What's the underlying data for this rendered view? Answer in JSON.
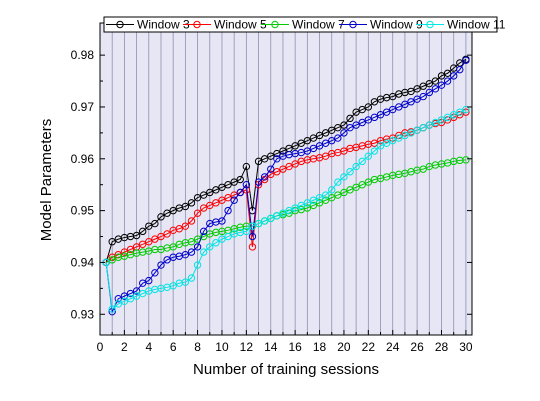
{
  "chart_data": {
    "type": "line",
    "xlabel": "Number of training sessions",
    "ylabel": "Model Parameters",
    "xlim": [
      0,
      30.5
    ],
    "ylim": [
      0.926,
      0.9862
    ],
    "xticks": [
      0,
      2,
      4,
      6,
      8,
      10,
      12,
      14,
      16,
      18,
      20,
      22,
      24,
      26,
      28,
      30
    ],
    "yticks": [
      0.93,
      0.94,
      0.95,
      0.96,
      0.97,
      0.98
    ],
    "xtick_labels": [
      "0",
      "2",
      "4",
      "6",
      "8",
      "10",
      "12",
      "14",
      "16",
      "18",
      "20",
      "22",
      "24",
      "26",
      "28",
      "30"
    ],
    "ytick_labels": [
      "0.93",
      "0.94",
      "0.95",
      "0.96",
      "0.97",
      "0.98"
    ],
    "grid": {
      "vertical": true,
      "horizontal": false
    },
    "background": "#e6e6f5",
    "legend_position": "top",
    "markers": "open-circle",
    "series": [
      {
        "name": "Window 3",
        "color": "#000000",
        "x": [
          0.5,
          1,
          1.5,
          2,
          2.5,
          3,
          3.5,
          4,
          4.5,
          5,
          5.5,
          6,
          6.5,
          7,
          7.5,
          8,
          8.5,
          9,
          9.5,
          10,
          10.5,
          11,
          11.5,
          12,
          12.5,
          13,
          13.5,
          14,
          14.5,
          15,
          15.5,
          16,
          16.5,
          17,
          17.5,
          18,
          18.5,
          19,
          19.5,
          20,
          20.5,
          21,
          21.5,
          22,
          22.5,
          23,
          23.5,
          24,
          24.5,
          25,
          25.5,
          26,
          26.5,
          27,
          27.5,
          28,
          28.5,
          29,
          29.5,
          30
        ],
        "y": [
          0.94,
          0.944,
          0.9445,
          0.9448,
          0.945,
          0.9452,
          0.946,
          0.947,
          0.9475,
          0.9488,
          0.9495,
          0.95,
          0.9505,
          0.9508,
          0.9515,
          0.9525,
          0.953,
          0.9535,
          0.954,
          0.9545,
          0.955,
          0.9555,
          0.956,
          0.9585,
          0.95,
          0.9595,
          0.96,
          0.9605,
          0.961,
          0.9615,
          0.962,
          0.9625,
          0.963,
          0.9635,
          0.964,
          0.9645,
          0.965,
          0.9655,
          0.966,
          0.9665,
          0.9678,
          0.969,
          0.9695,
          0.97,
          0.971,
          0.9715,
          0.9718,
          0.972,
          0.9725,
          0.9728,
          0.973,
          0.9735,
          0.974,
          0.9745,
          0.975,
          0.976,
          0.9765,
          0.9775,
          0.9785,
          0.9792
        ]
      },
      {
        "name": "Window 5",
        "color": "#ff0000",
        "x": [
          0.5,
          1,
          1.5,
          2,
          2.5,
          3,
          3.5,
          4,
          4.5,
          5,
          5.5,
          6,
          6.5,
          7,
          7.5,
          8,
          8.5,
          9,
          9.5,
          10,
          10.5,
          11,
          11.5,
          12,
          12.5,
          13,
          13.5,
          14,
          14.5,
          15,
          15.5,
          16,
          16.5,
          17,
          17.5,
          18,
          18.5,
          19,
          19.5,
          20,
          20.5,
          21,
          21.5,
          22,
          22.5,
          23,
          23.5,
          24,
          24.5,
          25,
          25.5,
          26,
          26.5,
          27,
          27.5,
          28,
          28.5,
          29,
          29.5,
          30
        ],
        "y": [
          0.94,
          0.941,
          0.9415,
          0.942,
          0.9425,
          0.943,
          0.9435,
          0.944,
          0.9445,
          0.945,
          0.9455,
          0.9462,
          0.9465,
          0.947,
          0.948,
          0.9495,
          0.9505,
          0.951,
          0.9515,
          0.952,
          0.9525,
          0.953,
          0.9535,
          0.954,
          0.943,
          0.955,
          0.956,
          0.957,
          0.9575,
          0.958,
          0.9585,
          0.959,
          0.9595,
          0.9598,
          0.96,
          0.9602,
          0.9605,
          0.961,
          0.9612,
          0.9615,
          0.962,
          0.9622,
          0.9625,
          0.9628,
          0.963,
          0.9635,
          0.9638,
          0.964,
          0.9645,
          0.965,
          0.9652,
          0.9655,
          0.966,
          0.9665,
          0.9668,
          0.967,
          0.9675,
          0.968,
          0.9685,
          0.969
        ]
      },
      {
        "name": "Window 7",
        "color": "#00cc00",
        "x": [
          0.5,
          1,
          1.5,
          2,
          2.5,
          3,
          3.5,
          4,
          4.5,
          5,
          5.5,
          6,
          6.5,
          7,
          7.5,
          8,
          8.5,
          9,
          9.5,
          10,
          10.5,
          11,
          11.5,
          12,
          12.5,
          13,
          13.5,
          14,
          14.5,
          15,
          15.5,
          16,
          16.5,
          17,
          17.5,
          18,
          18.5,
          19,
          19.5,
          20,
          20.5,
          21,
          21.5,
          22,
          22.5,
          23,
          23.5,
          24,
          24.5,
          25,
          25.5,
          26,
          26.5,
          27,
          27.5,
          28,
          28.5,
          29,
          29.5,
          30
        ],
        "y": [
          0.94,
          0.9405,
          0.941,
          0.9412,
          0.9415,
          0.9418,
          0.942,
          0.9422,
          0.9425,
          0.9425,
          0.9428,
          0.943,
          0.9435,
          0.9438,
          0.944,
          0.9445,
          0.945,
          0.9455,
          0.9458,
          0.946,
          0.9462,
          0.9465,
          0.9468,
          0.947,
          0.947,
          0.9475,
          0.948,
          0.9485,
          0.949,
          0.9492,
          0.9495,
          0.95,
          0.9502,
          0.9505,
          0.951,
          0.9515,
          0.952,
          0.9525,
          0.953,
          0.9535,
          0.954,
          0.9545,
          0.955,
          0.9555,
          0.956,
          0.9562,
          0.9565,
          0.9568,
          0.957,
          0.9572,
          0.9575,
          0.9578,
          0.958,
          0.9585,
          0.9588,
          0.959,
          0.9592,
          0.9595,
          0.9597,
          0.9598
        ]
      },
      {
        "name": "Window 9",
        "color": "#0000cc",
        "x": [
          0.5,
          1,
          1.5,
          2,
          2.5,
          3,
          3.5,
          4,
          4.5,
          5,
          5.5,
          6,
          6.5,
          7,
          7.5,
          8,
          8.5,
          9,
          9.5,
          10,
          10.5,
          11,
          11.5,
          12,
          12.5,
          13,
          13.5,
          14,
          14.5,
          15,
          15.5,
          16,
          16.5,
          17,
          17.5,
          18,
          18.5,
          19,
          19.5,
          20,
          20.5,
          21,
          21.5,
          22,
          22.5,
          23,
          23.5,
          24,
          24.5,
          25,
          25.5,
          26,
          26.5,
          27,
          27.5,
          28,
          28.5,
          29,
          29.5,
          30
        ],
        "y": [
          0.94,
          0.9305,
          0.933,
          0.9335,
          0.934,
          0.9345,
          0.936,
          0.9365,
          0.938,
          0.9395,
          0.9405,
          0.941,
          0.9412,
          0.9415,
          0.942,
          0.943,
          0.946,
          0.9475,
          0.9478,
          0.948,
          0.95,
          0.952,
          0.9535,
          0.955,
          0.945,
          0.9555,
          0.9565,
          0.958,
          0.96,
          0.9605,
          0.9608,
          0.961,
          0.9612,
          0.9615,
          0.962,
          0.9625,
          0.963,
          0.9635,
          0.964,
          0.965,
          0.966,
          0.9665,
          0.967,
          0.9675,
          0.968,
          0.9685,
          0.969,
          0.9695,
          0.97,
          0.9705,
          0.971,
          0.9715,
          0.972,
          0.9728,
          0.9735,
          0.9742,
          0.975,
          0.976,
          0.9772,
          0.979
        ]
      },
      {
        "name": "Window 11",
        "color": "#00e5e5",
        "x": [
          0.5,
          1,
          1.5,
          2,
          2.5,
          3,
          3.5,
          4,
          4.5,
          5,
          5.5,
          6,
          6.5,
          7,
          7.5,
          8,
          8.5,
          9,
          9.5,
          10,
          10.5,
          11,
          11.5,
          12,
          12.5,
          13,
          13.5,
          14,
          14.5,
          15,
          15.5,
          16,
          16.5,
          17,
          17.5,
          18,
          18.5,
          19,
          19.5,
          20,
          20.5,
          21,
          21.5,
          22,
          22.5,
          23,
          23.5,
          24,
          24.5,
          25,
          25.5,
          26,
          26.5,
          27,
          27.5,
          28,
          28.5,
          29,
          29.5,
          30
        ],
        "y": [
          0.94,
          0.931,
          0.932,
          0.9325,
          0.933,
          0.9335,
          0.934,
          0.9345,
          0.9348,
          0.935,
          0.9352,
          0.9355,
          0.936,
          0.9362,
          0.937,
          0.9395,
          0.942,
          0.943,
          0.9438,
          0.9445,
          0.945,
          0.9455,
          0.9458,
          0.946,
          0.947,
          0.9475,
          0.948,
          0.9485,
          0.949,
          0.9495,
          0.95,
          0.9505,
          0.951,
          0.9515,
          0.952,
          0.9525,
          0.953,
          0.954,
          0.9555,
          0.9565,
          0.9575,
          0.9585,
          0.9595,
          0.9605,
          0.9615,
          0.9625,
          0.963,
          0.9635,
          0.964,
          0.9645,
          0.965,
          0.9655,
          0.966,
          0.9665,
          0.967,
          0.9675,
          0.968,
          0.9685,
          0.969,
          0.9695
        ]
      }
    ]
  }
}
